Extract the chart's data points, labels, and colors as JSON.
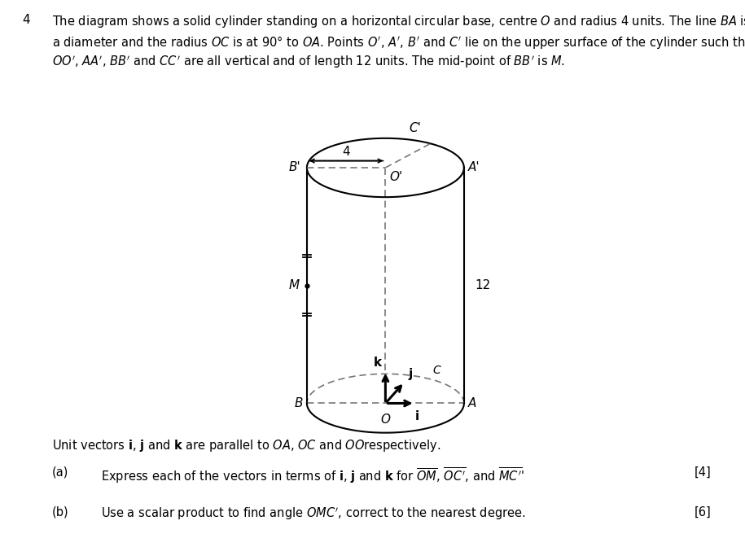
{
  "background_color": "#ffffff",
  "text_color": "#000000",
  "fig_width": 9.15,
  "fig_height": 6.72,
  "problem_number": "4",
  "line1": "The diagram shows a solid cylinder standing on a horizontal circular base, centre $\\mathit{O}$ and radius 4 units. The line $\\mathit{BA}$ is",
  "line2": "a diameter and the radius $\\mathit{OC}$ is at 90° to $\\mathit{OA}$. Points $\\mathit{O'}$, $\\mathit{A'}$, $\\mathit{B'}$ and $\\mathit{C'}$ lie on the upper surface of the cylinder such that",
  "line3": "$\\mathit{OO'}$, $\\mathit{AA'}$, $\\mathit{BB'}$ and $\\mathit{CC'}$ are all vertical and of length 12 units. The mid-point of $\\mathit{BB'}$ is $\\mathit{M}$.",
  "unit_line": "Unit vectors $\\mathbf{i}$, $\\mathbf{j}$ and $\\mathbf{k}$ are parallel to $\\mathit{OA}$, $\\mathit{OC}$ and $\\mathit{OO}$respectively.",
  "part_a_label": "(a)",
  "part_a_text": "Express each of the vectors in terms of $\\mathbf{i}$, $\\mathbf{j}$ and $\\mathbf{k}$ for $\\overline{OM}$, $\\overline{OC'}$, and $\\overline{MC'}$’",
  "part_a_mark": "[4]",
  "part_b_label": "(b)",
  "part_b_text": "Use a scalar product to find angle $\\mathit{OMC'}$, correct to the nearest degree.",
  "part_b_mark": "[6]"
}
